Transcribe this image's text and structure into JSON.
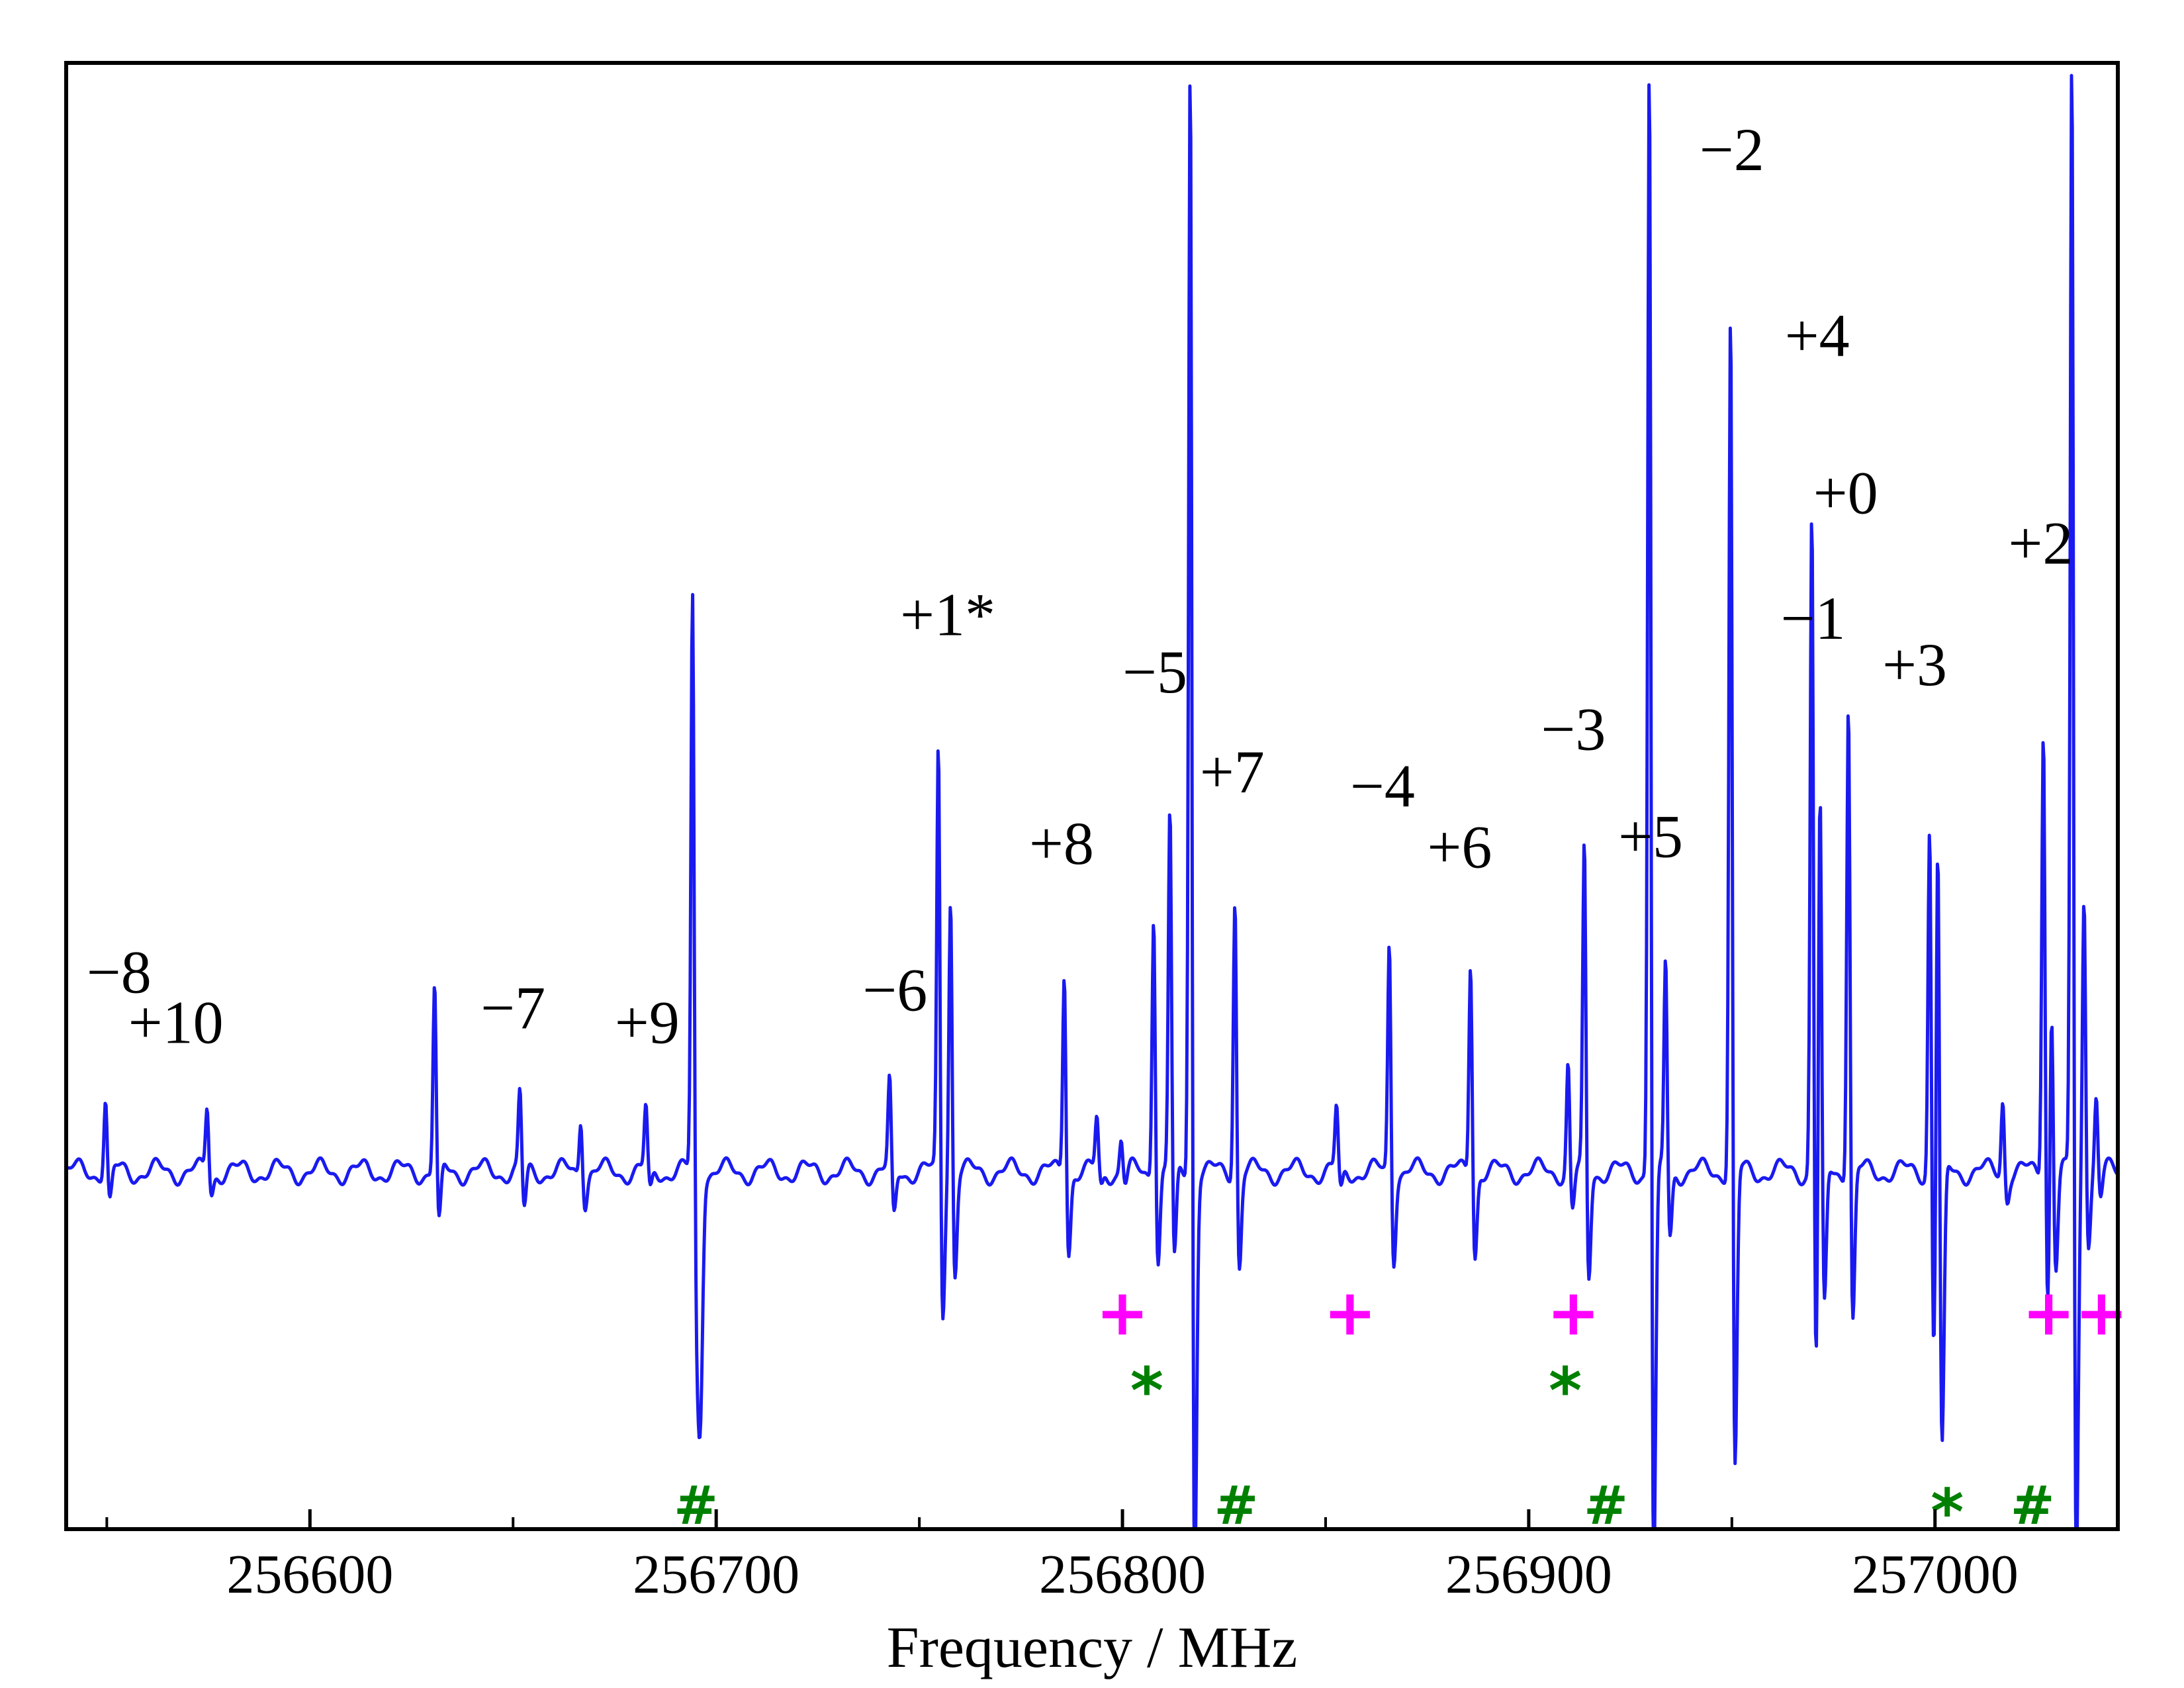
{
  "chart_data": {
    "type": "line",
    "title": "",
    "xlabel": "Frequency / MHz",
    "ylabel": "",
    "xlim": [
      256540,
      257045
    ],
    "ylim": [
      -1.0,
      3.1
    ],
    "grid": false,
    "xticks": [
      {
        "value": 256600,
        "label": "256600"
      },
      {
        "value": 256700,
        "label": "256700"
      },
      {
        "value": 256800,
        "label": "256800"
      },
      {
        "value": 256900,
        "label": "256900"
      },
      {
        "value": 257000,
        "label": "257000"
      }
    ],
    "minor_ticks": [
      256550,
      256650,
      256750,
      256850,
      256950
    ],
    "line_color": "#1a1af0",
    "baseline_ripple": {
      "period_mhz": 10.0,
      "amplitude": 0.028
    },
    "peaks": [
      {
        "x": 256550,
        "up": 0.22,
        "down": -0.1
      },
      {
        "x": 256575,
        "up": 0.19,
        "down": -0.06
      },
      {
        "x": 256631,
        "up": 0.55,
        "down": -0.17
      },
      {
        "x": 256652,
        "up": 0.23,
        "down": -0.12
      },
      {
        "x": 256667,
        "up": 0.17,
        "down": -0.08
      },
      {
        "x": 256683,
        "up": 0.18,
        "down": -0.07
      },
      {
        "x": 256694.5,
        "up": 1.72,
        "down": -0.78
      },
      {
        "x": 256695.5,
        "up": 0.3,
        "down": -0.55
      },
      {
        "x": 256743,
        "up": 0.26,
        "down": -0.14
      },
      {
        "x": 256755,
        "up": 1.25,
        "down": -0.42
      },
      {
        "x": 256758,
        "up": 0.82,
        "down": -0.3
      },
      {
        "x": 256786,
        "up": 0.6,
        "down": -0.23
      },
      {
        "x": 256794,
        "up": 0.15,
        "down": -0.05
      },
      {
        "x": 256800,
        "up": 0.1,
        "down": -0.04
      },
      {
        "x": 256808,
        "up": 0.78,
        "down": -0.26
      },
      {
        "x": 256812,
        "up": 1.05,
        "down": -0.28
      },
      {
        "x": 256817,
        "up": 3.3,
        "down": -1.2
      },
      {
        "x": 256828,
        "up": 0.82,
        "down": -0.28
      },
      {
        "x": 256853,
        "up": 0.18,
        "down": -0.07
      },
      {
        "x": 256866,
        "up": 0.68,
        "down": -0.25
      },
      {
        "x": 256886,
        "up": 0.63,
        "down": -0.24
      },
      {
        "x": 256910,
        "up": 0.32,
        "down": -0.12
      },
      {
        "x": 256914,
        "up": 0.95,
        "down": -0.32
      },
      {
        "x": 256930,
        "up": 3.3,
        "down": -1.2
      },
      {
        "x": 256934,
        "up": 0.62,
        "down": -0.2
      },
      {
        "x": 256950,
        "up": 2.55,
        "down": -0.9
      },
      {
        "x": 256970,
        "up": 1.95,
        "down": -0.62
      },
      {
        "x": 256972,
        "up": 1.2,
        "down": -0.42
      },
      {
        "x": 256979,
        "up": 1.4,
        "down": -0.45
      },
      {
        "x": 256999,
        "up": 1.05,
        "down": -0.55
      },
      {
        "x": 257001,
        "up": 1.12,
        "down": -0.82
      },
      {
        "x": 257017,
        "up": 0.22,
        "down": -0.07
      },
      {
        "x": 257027,
        "up": 1.32,
        "down": -0.4
      },
      {
        "x": 257029,
        "up": 0.55,
        "down": -0.28
      },
      {
        "x": 257034,
        "up": 3.3,
        "down": -1.2
      },
      {
        "x": 257037,
        "up": 0.82,
        "down": -0.2
      },
      {
        "x": 257040,
        "up": 0.22,
        "down": -0.08
      }
    ],
    "line_labels": [
      {
        "text": "−8",
        "x": 256553,
        "y": 0.5
      },
      {
        "text": "+10",
        "x": 256567,
        "y": 0.36
      },
      {
        "text": "−7",
        "x": 256650,
        "y": 0.4
      },
      {
        "text": "+9",
        "x": 256683,
        "y": 0.36
      },
      {
        "text": "−6",
        "x": 256744,
        "y": 0.45
      },
      {
        "text": "+1*",
        "x": 256757,
        "y": 1.5
      },
      {
        "text": "+8",
        "x": 256785,
        "y": 0.86
      },
      {
        "text": "−5",
        "x": 256808,
        "y": 1.34
      },
      {
        "text": "+7",
        "x": 256827,
        "y": 1.06
      },
      {
        "text": "−4",
        "x": 256864,
        "y": 1.02
      },
      {
        "text": "+6",
        "x": 256883,
        "y": 0.85
      },
      {
        "text": "−3",
        "x": 256911,
        "y": 1.18
      },
      {
        "text": "+5",
        "x": 256930,
        "y": 0.88
      },
      {
        "text": "−2",
        "x": 256950,
        "y": 2.8
      },
      {
        "text": "+4",
        "x": 256971,
        "y": 2.28
      },
      {
        "text": "+0",
        "x": 256978,
        "y": 1.84
      },
      {
        "text": "−1",
        "x": 256970,
        "y": 1.49
      },
      {
        "text": "+3",
        "x": 256995,
        "y": 1.36
      },
      {
        "text": "+2",
        "x": 257026,
        "y": 1.7
      }
    ],
    "markers": [
      {
        "symbol": "+",
        "x": 256800,
        "row": "plus",
        "color": "#ff00ff"
      },
      {
        "symbol": "+",
        "x": 256856,
        "row": "plus",
        "color": "#ff00ff"
      },
      {
        "symbol": "+",
        "x": 256911,
        "row": "plus",
        "color": "#ff00ff"
      },
      {
        "symbol": "+",
        "x": 257028,
        "row": "plus",
        "color": "#ff00ff"
      },
      {
        "symbol": "+",
        "x": 257041,
        "row": "plus",
        "color": "#ff00ff"
      },
      {
        "symbol": "*",
        "x": 256806,
        "row": "star",
        "color": "#008000"
      },
      {
        "symbol": "*",
        "x": 256909,
        "row": "star",
        "color": "#008000"
      },
      {
        "symbol": "*",
        "x": 257003,
        "row": "star2",
        "color": "#008000"
      },
      {
        "symbol": "#",
        "x": 256695,
        "row": "hash",
        "color": "#008000"
      },
      {
        "symbol": "#",
        "x": 256828,
        "row": "hash",
        "color": "#008000"
      },
      {
        "symbol": "#",
        "x": 256919,
        "row": "hash",
        "color": "#008000"
      },
      {
        "symbol": "#",
        "x": 257024,
        "row": "hash",
        "color": "#008000"
      }
    ],
    "marker_rows": {
      "plus": -0.4,
      "star": -0.59,
      "star2": -0.93,
      "hash": -0.93
    }
  }
}
